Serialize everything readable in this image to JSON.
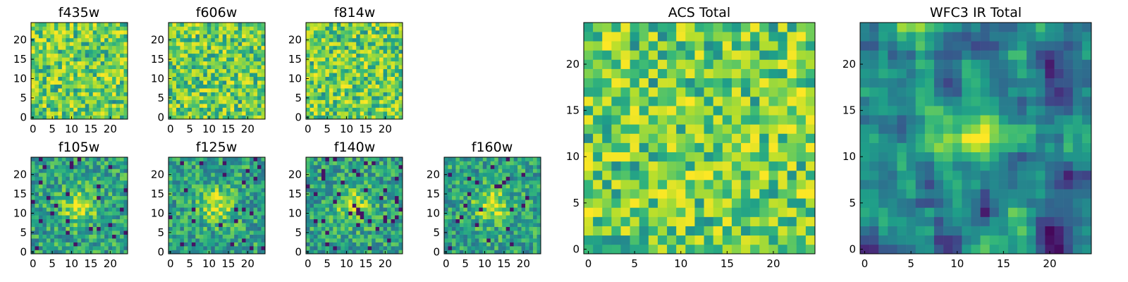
{
  "figure": {
    "background": "#ffffff",
    "colormap": "viridis",
    "grid_size": 25
  },
  "chart_data": [
    {
      "type": "heatmap",
      "title": "f435w",
      "x_ticks": [
        "0",
        "5",
        "10",
        "15",
        "20"
      ],
      "y_ticks": [
        "0",
        "5",
        "10",
        "15",
        "20"
      ],
      "xlim": [
        0,
        24
      ],
      "ylim": [
        0,
        24
      ],
      "seed": 11,
      "style": "noise"
    },
    {
      "type": "heatmap",
      "title": "f606w",
      "x_ticks": [
        "0",
        "5",
        "10",
        "15",
        "20"
      ],
      "y_ticks": [
        "0",
        "5",
        "10",
        "15",
        "20"
      ],
      "xlim": [
        0,
        24
      ],
      "ylim": [
        0,
        24
      ],
      "seed": 23,
      "style": "noise"
    },
    {
      "type": "heatmap",
      "title": "f814w",
      "x_ticks": [
        "0",
        "5",
        "10",
        "15",
        "20"
      ],
      "y_ticks": [
        "0",
        "5",
        "10",
        "15",
        "20"
      ],
      "xlim": [
        0,
        24
      ],
      "ylim": [
        0,
        24
      ],
      "seed": 37,
      "style": "noise"
    },
    {
      "type": "heatmap",
      "title": "f105w",
      "x_ticks": [
        "0",
        "5",
        "10",
        "15",
        "20"
      ],
      "y_ticks": [
        "0",
        "5",
        "10",
        "15",
        "20"
      ],
      "xlim": [
        0,
        24
      ],
      "ylim": [
        0,
        24
      ],
      "seed": 41,
      "style": "source"
    },
    {
      "type": "heatmap",
      "title": "f125w",
      "x_ticks": [
        "0",
        "5",
        "10",
        "15",
        "20"
      ],
      "y_ticks": [
        "0",
        "5",
        "10",
        "15",
        "20"
      ],
      "xlim": [
        0,
        24
      ],
      "ylim": [
        0,
        24
      ],
      "seed": 53,
      "style": "source"
    },
    {
      "type": "heatmap",
      "title": "f140w",
      "x_ticks": [
        "0",
        "5",
        "10",
        "15",
        "20"
      ],
      "y_ticks": [
        "0",
        "5",
        "10",
        "15",
        "20"
      ],
      "xlim": [
        0,
        24
      ],
      "ylim": [
        0,
        24
      ],
      "seed": 67,
      "style": "source"
    },
    {
      "type": "heatmap",
      "title": "f160w",
      "x_ticks": [
        "0",
        "5",
        "10",
        "15",
        "20"
      ],
      "y_ticks": [
        "0",
        "5",
        "10",
        "15",
        "20"
      ],
      "xlim": [
        0,
        24
      ],
      "ylim": [
        0,
        24
      ],
      "seed": 79,
      "style": "source"
    },
    {
      "type": "heatmap",
      "title": "ACS Total",
      "x_ticks": [
        "0",
        "5",
        "10",
        "15",
        "20"
      ],
      "y_ticks": [
        "0",
        "5",
        "10",
        "15",
        "20"
      ],
      "xlim": [
        0,
        24
      ],
      "ylim": [
        0,
        24
      ],
      "seed": 97,
      "style": "noise"
    },
    {
      "type": "heatmap",
      "title": "WFC3 IR Total",
      "x_ticks": [
        "0",
        "5",
        "10",
        "15",
        "20"
      ],
      "y_ticks": [
        "0",
        "5",
        "10",
        "15",
        "20"
      ],
      "xlim": [
        0,
        24
      ],
      "ylim": [
        0,
        24
      ],
      "seed": 131,
      "style": "smooth"
    }
  ]
}
